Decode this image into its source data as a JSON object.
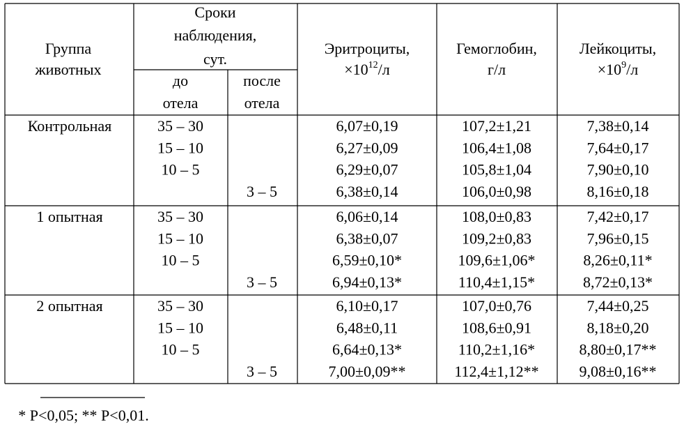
{
  "table": {
    "header": {
      "group": [
        "Группа",
        "животных"
      ],
      "terms": [
        "Сроки",
        "наблюдения,",
        "сут."
      ],
      "before": [
        "до",
        "отела"
      ],
      "after": [
        "после",
        "отела"
      ],
      "erythrocytes": {
        "name": "Эритроциты,",
        "unit_base": "×10",
        "unit_exp": "12",
        "unit_tail": "/л"
      },
      "hemoglobin": {
        "name": "Гемоглобин,",
        "unit": "г/л"
      },
      "leukocytes": {
        "name": "Лейкоциты,",
        "unit_base": "×10",
        "unit_exp": "9",
        "unit_tail": "/л"
      }
    },
    "groups": [
      {
        "name": "Контрольная",
        "rows": [
          {
            "before": "35 – 30",
            "after": null,
            "erythrocytes": "6,07±0,19",
            "hemoglobin": "107,2±1,21",
            "leukocytes": "7,38±0,14"
          },
          {
            "before": "15 – 10",
            "after": null,
            "erythrocytes": "6,27±0,09",
            "hemoglobin": "106,4±1,08",
            "leukocytes": "7,64±0,17"
          },
          {
            "before": "10 – 5",
            "after": null,
            "erythrocytes": "6,29±0,07",
            "hemoglobin": "105,8±1,04",
            "leukocytes": "7,90±0,10"
          },
          {
            "before": null,
            "after": "3 – 5",
            "erythrocytes": "6,38±0,14",
            "hemoglobin": "106,0±0,98",
            "leukocytes": "8,16±0,18"
          }
        ]
      },
      {
        "name": "1 опытная",
        "rows": [
          {
            "before": "35 – 30",
            "after": null,
            "erythrocytes": "6,06±0,14",
            "hemoglobin": "108,0±0,83",
            "leukocytes": "7,42±0,17"
          },
          {
            "before": "15 – 10",
            "after": null,
            "erythrocytes": "6,38±0,07",
            "hemoglobin": "109,2±0,83",
            "leukocytes": "7,96±0,15"
          },
          {
            "before": "10 – 5",
            "after": null,
            "erythrocytes": "6,59±0,10*",
            "hemoglobin": "109,6±1,06*",
            "leukocytes": "8,26±0,11*"
          },
          {
            "before": null,
            "after": "3 – 5",
            "erythrocytes": "6,94±0,13*",
            "hemoglobin": "110,4±1,15*",
            "leukocytes": "8,72±0,13*"
          }
        ]
      },
      {
        "name": "2 опытная",
        "rows": [
          {
            "before": "35 – 30",
            "after": null,
            "erythrocytes": "6,10±0,17",
            "hemoglobin": "107,0±0,76",
            "leukocytes": "7,44±0,25"
          },
          {
            "before": "15 – 10",
            "after": null,
            "erythrocytes": "6,48±0,11",
            "hemoglobin": "108,6±0,91",
            "leukocytes": "8,18±0,20"
          },
          {
            "before": "10 – 5",
            "after": null,
            "erythrocytes": "6,64±0,13*",
            "hemoglobin": "110,2±1,16*",
            "leukocytes": "8,80±0,17**"
          },
          {
            "before": null,
            "after": "3 – 5",
            "erythrocytes": "7,00±0,09**",
            "hemoglobin": "112,4±1,12**",
            "leukocytes": "9,08±0,16**"
          }
        ]
      }
    ]
  },
  "footnote": "* P<0,05; ** P<0,01."
}
